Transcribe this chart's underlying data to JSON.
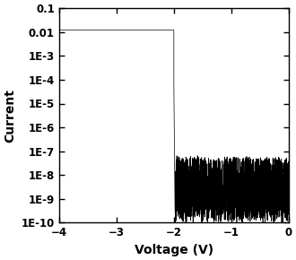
{
  "title": "",
  "xlabel": "Voltage (V)",
  "ylabel": "Current",
  "xlim": [
    -4,
    0
  ],
  "ylim": [
    1e-10,
    0.1
  ],
  "xticks": [
    -4,
    -3,
    -2,
    -1,
    0
  ],
  "background_color": "#ffffff",
  "line_color": "#000000",
  "on_region_current": 0.012,
  "off_noise_floor": 1e-10,
  "off_noise_ceil": 5e-08,
  "transition_voltage": -2.0,
  "figsize": [
    3.3,
    2.9
  ],
  "dpi": 100
}
